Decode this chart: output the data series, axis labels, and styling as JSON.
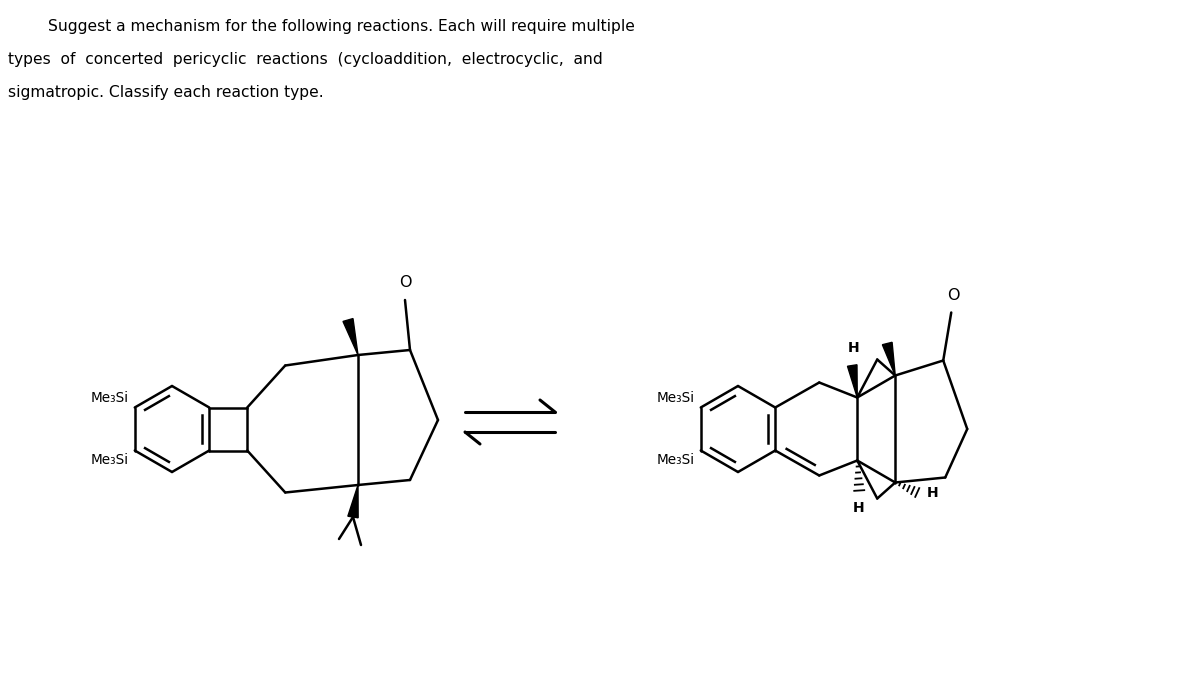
{
  "background_color": "#ffffff",
  "line_color": "#000000",
  "figsize": [
    12.0,
    6.77
  ],
  "dpi": 100,
  "title_line1": "Suggest a mechanism for the following reactions. Each will require multiple",
  "title_line2": "types  of  concerted  pericyclic  reactions  (cycloaddition,  electrocyclic,  and",
  "title_line3": "sigmatropic. Classify each reaction type."
}
